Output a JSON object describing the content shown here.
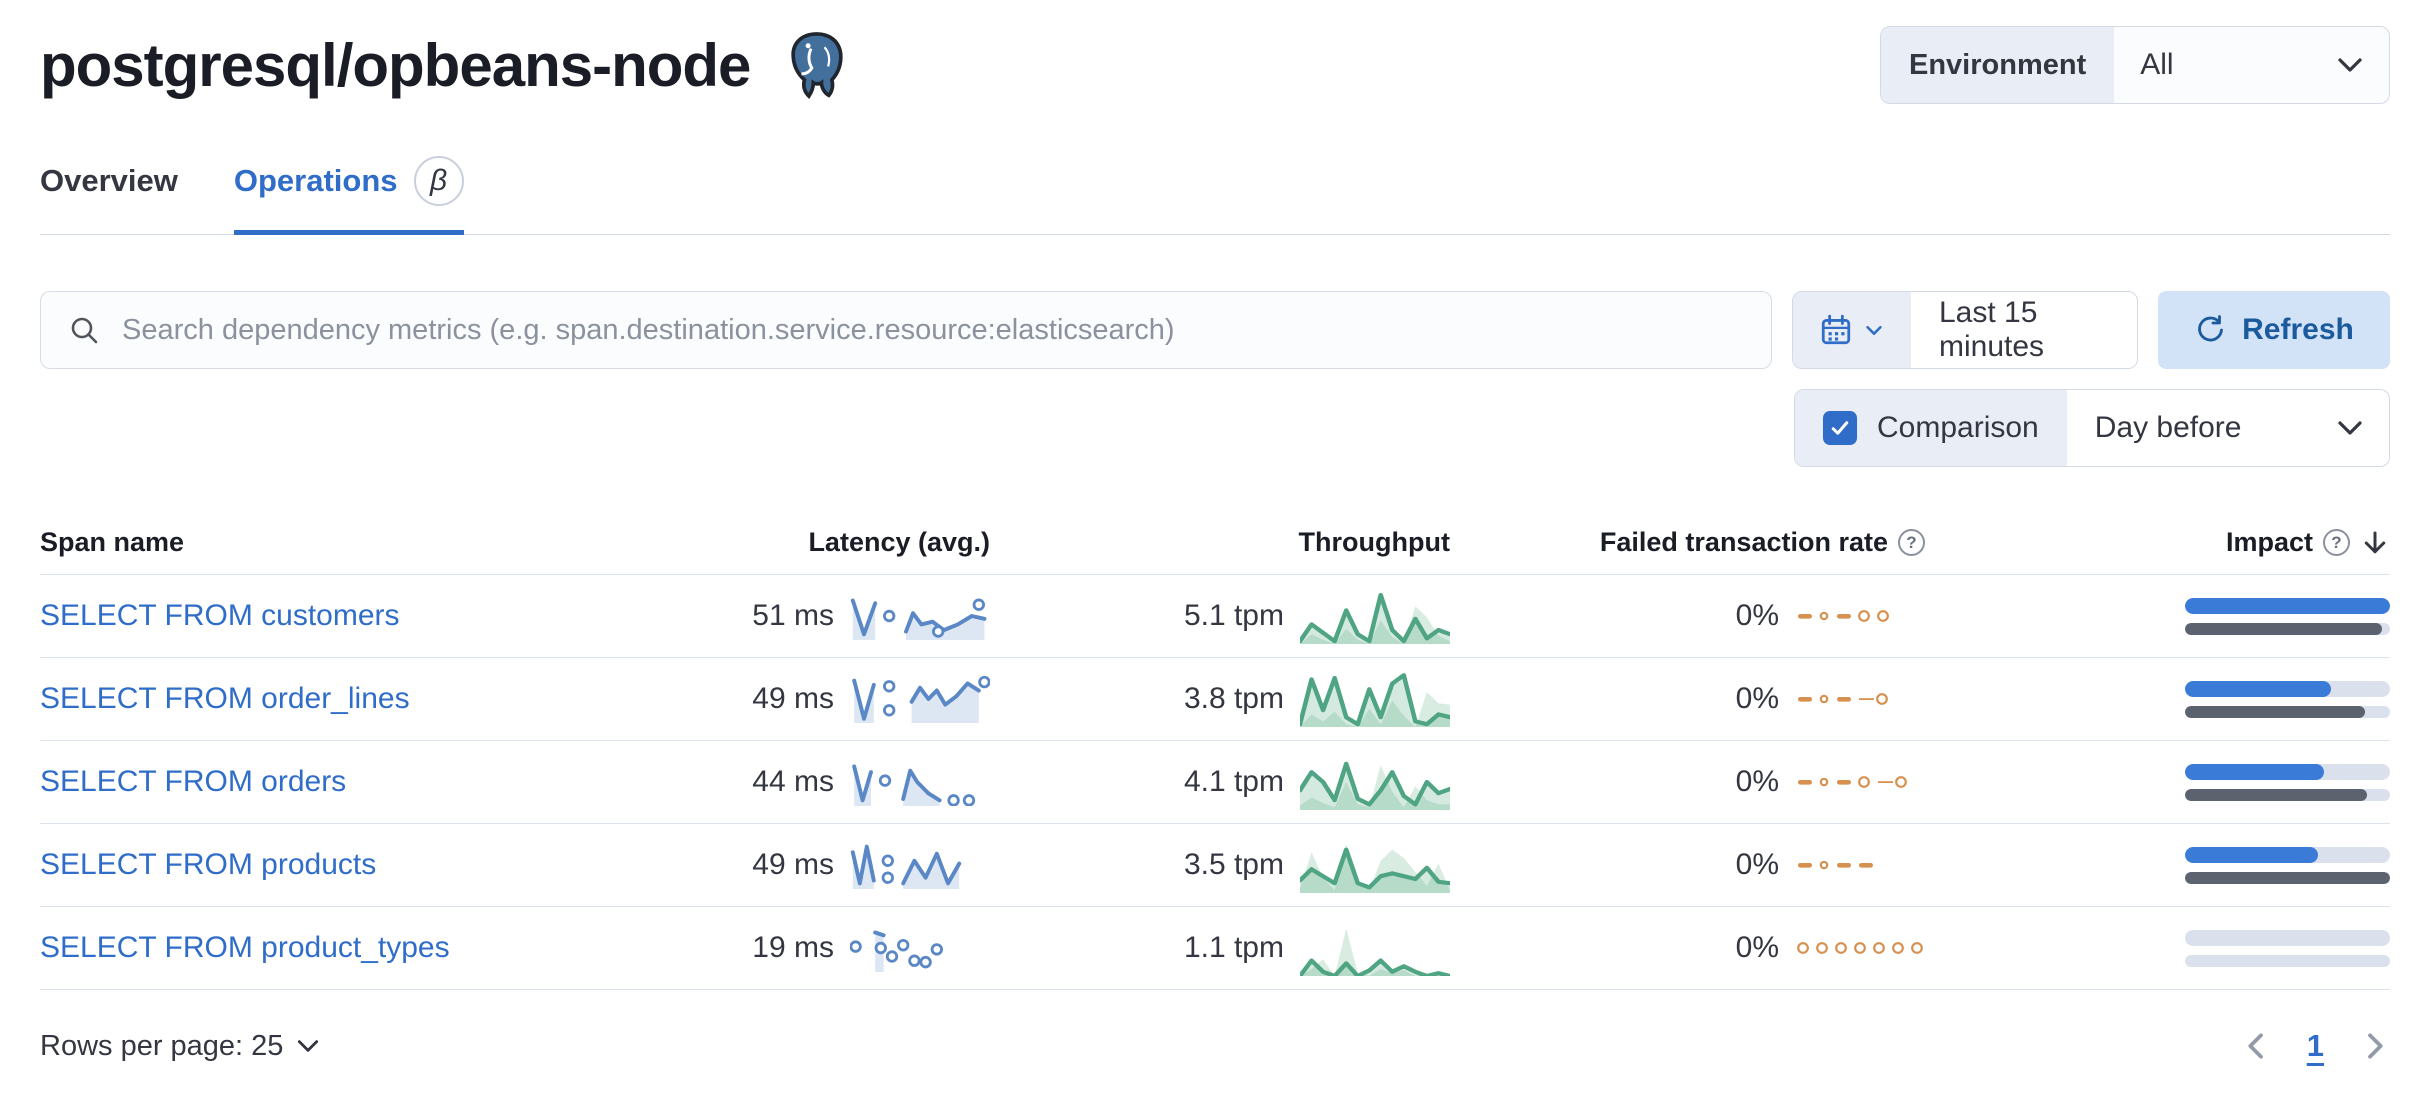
{
  "page": {
    "title": "postgresql/opbeans-node"
  },
  "environment": {
    "label": "Environment",
    "value": "All"
  },
  "tabs": {
    "overview": "Overview",
    "operations": "Operations",
    "beta": "β"
  },
  "search": {
    "placeholder": "Search dependency metrics (e.g. span.destination.service.resource:elasticsearch)"
  },
  "timepicker": {
    "range": "Last 15 minutes"
  },
  "refresh": {
    "label": "Refresh"
  },
  "comparison": {
    "label": "Comparison",
    "checked": true,
    "value": "Day before"
  },
  "table": {
    "headers": {
      "span": "Span name",
      "latency": "Latency (avg.)",
      "throughput": "Throughput",
      "failed": "Failed transaction rate",
      "impact": "Impact"
    },
    "rows": [
      {
        "span_name": "SELECT FROM customers",
        "latency": "51 ms",
        "throughput": "5.1 tpm",
        "failed_rate": "0%",
        "impact_pct": 100,
        "impact_prev_pct": 96,
        "latency_spark": {
          "segments": [
            [
              [
                2,
                6
              ],
              [
                10,
                30
              ],
              [
                18,
                8
              ]
            ],
            [
              [
                40,
                28
              ],
              [
                45,
                15
              ],
              [
                51,
                23
              ],
              [
                59,
                21
              ],
              [
                67,
                27
              ],
              [
                77,
                23
              ],
              [
                87,
                17
              ],
              [
                96,
                19
              ]
            ]
          ],
          "dots": [
            [
              28,
              17
            ],
            [
              63,
              28
            ],
            [
              92,
              9
            ]
          ]
        },
        "throughput_spark": {
          "current": [
            38,
            26,
            32,
            38,
            16,
            33,
            38,
            5,
            30,
            38,
            22,
            36,
            30,
            33
          ],
          "previous": [
            40,
            33,
            37,
            40,
            29,
            37,
            40,
            23,
            35,
            40,
            13,
            21,
            34,
            38
          ]
        },
        "failed_spark": [
          "dash",
          "dot",
          "dash",
          "ring",
          "ring"
        ]
      },
      {
        "span_name": "SELECT FROM order_lines",
        "latency": "49 ms",
        "throughput": "3.8 tpm",
        "failed_rate": "0%",
        "impact_pct": 71,
        "impact_prev_pct": 88,
        "latency_spark": {
          "segments": [
            [
              [
                3,
                4
              ],
              [
                10,
                31
              ],
              [
                17,
                7
              ]
            ],
            [
              [
                44,
                19
              ],
              [
                50,
                9
              ],
              [
                56,
                17
              ],
              [
                62,
                11
              ],
              [
                68,
                21
              ],
              [
                76,
                15
              ],
              [
                84,
                6
              ],
              [
                92,
                11
              ]
            ]
          ],
          "dots": [
            [
              28,
              8
            ],
            [
              28,
              25
            ],
            [
              96,
              5
            ]
          ]
        },
        "throughput_spark": {
          "current": [
            38,
            6,
            28,
            5,
            33,
            38,
            13,
            33,
            9,
            3,
            36,
            38,
            31,
            33
          ],
          "previous": [
            40,
            31,
            36,
            29,
            38,
            40,
            27,
            38,
            21,
            32,
            40,
            15,
            23,
            24
          ]
        },
        "failed_spark": [
          "dash",
          "dot",
          "dash",
          "line",
          "ring"
        ]
      },
      {
        "span_name": "SELECT FROM orders",
        "latency": "44 ms",
        "throughput": "4.1 tpm",
        "failed_rate": "0%",
        "impact_pct": 68,
        "impact_prev_pct": 89,
        "latency_spark": {
          "segments": [
            [
              [
                3,
                6
              ],
              [
                9,
                30
              ],
              [
                15,
                10
              ]
            ],
            [
              [
                38,
                29
              ],
              [
                43,
                9
              ],
              [
                48,
                17
              ],
              [
                56,
                25
              ],
              [
                64,
                30
              ]
            ]
          ],
          "dots": [
            [
              25,
              16
            ],
            [
              74,
              30
            ],
            [
              85,
              30
            ]
          ]
        },
        "throughput_spark": {
          "current": [
            26,
            13,
            20,
            33,
            7,
            32,
            36,
            26,
            13,
            30,
            36,
            20,
            28,
            25
          ],
          "previous": [
            37,
            31,
            35,
            38,
            20,
            36,
            38,
            8,
            27,
            38,
            23,
            33,
            36,
            36
          ]
        },
        "failed_spark": [
          "dash",
          "dot",
          "dash",
          "ring",
          "line",
          "ring"
        ]
      },
      {
        "span_name": "SELECT FROM products",
        "latency": "49 ms",
        "throughput": "3.5 tpm",
        "failed_rate": "0%",
        "impact_pct": 65,
        "impact_prev_pct": 100,
        "latency_spark": {
          "segments": [
            [
              [
                2,
                8
              ],
              [
                7,
                30
              ],
              [
                12,
                4
              ],
              [
                17,
                28
              ]
            ],
            [
              [
                38,
                30
              ],
              [
                46,
                14
              ],
              [
                54,
                26
              ],
              [
                62,
                9
              ],
              [
                70,
                30
              ],
              [
                78,
                16
              ]
            ]
          ],
          "dots": [
            [
              27,
              14
            ],
            [
              27,
              26
            ]
          ]
        },
        "throughput_spark": {
          "current": [
            31,
            23,
            28,
            33,
            9,
            33,
            36,
            28,
            26,
            28,
            30,
            22,
            32,
            33
          ],
          "previous": [
            37,
            11,
            29,
            38,
            5,
            33,
            38,
            17,
            9,
            15,
            25,
            35,
            19,
            38
          ]
        },
        "failed_spark": [
          "dash",
          "dot",
          "dash",
          "dash"
        ]
      },
      {
        "span_name": "SELECT FROM product_types",
        "latency": "19 ms",
        "throughput": "1.1 tpm",
        "failed_rate": "0%",
        "impact_pct": 0,
        "impact_prev_pct": 0,
        "latency_spark": {
          "segments": [
            [
              [
                18,
                6
              ],
              [
                24,
                8
              ]
            ]
          ],
          "dots": [
            [
              4,
              16
            ],
            [
              22,
              17
            ],
            [
              30,
              23
            ],
            [
              38,
              15
            ],
            [
              46,
              26
            ],
            [
              54,
              27
            ],
            [
              62,
              18
            ]
          ]
        },
        "throughput_spark": {
          "current": [
            40,
            29,
            37,
            40,
            31,
            40,
            36,
            29,
            37,
            33,
            37,
            40,
            38,
            40
          ],
          "previous": [
            40,
            35,
            28,
            40,
            6,
            38,
            40,
            35,
            38,
            36,
            40,
            38,
            40,
            40
          ]
        },
        "failed_spark": [
          "ring",
          "ring",
          "ring",
          "ring",
          "ring",
          "ring",
          "ring"
        ]
      }
    ]
  },
  "footer": {
    "rows_per_page": "Rows per page: 25",
    "current_page": "1"
  },
  "colors": {
    "accent": "#2f6dc9",
    "latency_line": "#5a87c5",
    "latency_fill": "#dde6f3",
    "throughput_line": "#4fa583",
    "throughput_fill_current": "rgba(84,168,133,0.25)",
    "throughput_fill_previous": "#d9ece1",
    "failed": "#d6904f",
    "impact_bar": "#3b7bd8",
    "impact_prev_bar": "#5c636e"
  }
}
